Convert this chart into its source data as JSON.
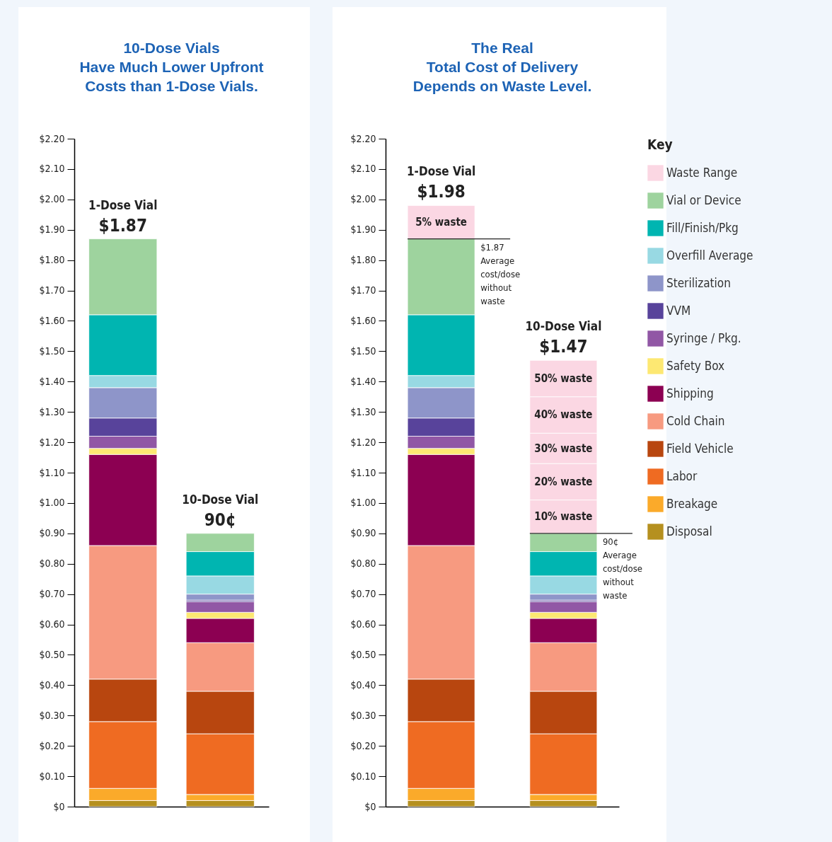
{
  "chart_data": [
    {
      "type": "bar",
      "stacked": true,
      "title": "10-Dose Vials\nHave Much Lower Upfront\nCosts than 1-Dose Vials.",
      "categories": [
        "1-Dose Vial",
        "10-Dose Vial"
      ],
      "totals": [
        "$1.87",
        "90¢"
      ],
      "ylim": [
        0,
        2.2
      ],
      "yticks": [
        {
          "value": 0,
          "label": "$0"
        },
        {
          "value": 0.1,
          "label": "$0.10"
        },
        {
          "value": 0.2,
          "label": "$0.20"
        },
        {
          "value": 0.3,
          "label": "$0.30"
        },
        {
          "value": 0.4,
          "label": "$0.40"
        },
        {
          "value": 0.5,
          "label": "$0.50"
        },
        {
          "value": 0.6,
          "label": "$0.60"
        },
        {
          "value": 0.7,
          "label": "$0.70"
        },
        {
          "value": 0.8,
          "label": "$0.80"
        },
        {
          "value": 0.9,
          "label": "$0.90"
        },
        {
          "value": 1,
          "label": "$1.00"
        },
        {
          "value": 1.1,
          "label": "$1.10"
        },
        {
          "value": 1.2,
          "label": "$1.20"
        },
        {
          "value": 1.3,
          "label": "$1.30"
        },
        {
          "value": 1.4,
          "label": "$1.40"
        },
        {
          "value": 1.5,
          "label": "$1.50"
        },
        {
          "value": 1.6,
          "label": "$1.60"
        },
        {
          "value": 1.7,
          "label": "$1.70"
        },
        {
          "value": 1.8,
          "label": "$1.80"
        },
        {
          "value": 1.9,
          "label": "$1.90"
        },
        {
          "value": 2,
          "label": "$2.00"
        },
        {
          "value": 2.1,
          "label": "$2.10"
        },
        {
          "value": 2.2,
          "label": "$2.20"
        }
      ],
      "grid": false,
      "legend": false,
      "series": [
        {
          "color": "#b5901f",
          "values": [
            0.02,
            0.02
          ]
        },
        {
          "color": "#fbaa2a",
          "values": [
            0.04,
            0.02
          ]
        },
        {
          "color": "#ef6b22",
          "values": [
            0.22,
            0.2
          ]
        },
        {
          "color": "#b8460f",
          "values": [
            0.14,
            0.14
          ]
        },
        {
          "color": "#f79a80",
          "values": [
            0.44,
            0.16
          ]
        },
        {
          "color": "#8c0052",
          "values": [
            0.3,
            0.08
          ]
        },
        {
          "color": "#fde872",
          "values": [
            0.02,
            0.02
          ]
        },
        {
          "color": "#9157a5",
          "values": [
            0.04,
            0.035
          ]
        },
        {
          "color": "#58439b",
          "values": [
            0.06,
            0.005
          ]
        },
        {
          "color": "#8e95c9",
          "values": [
            0.1,
            0.02
          ]
        },
        {
          "color": "#98d9e3",
          "values": [
            0.04,
            0.06
          ]
        },
        {
          "color": "#00b5b1",
          "values": [
            0.2,
            0.08
          ]
        },
        {
          "color": "#9ed39e",
          "values": [
            0.25,
            0.06
          ]
        }
      ]
    },
    {
      "type": "bar",
      "stacked": true,
      "title": "The Real\nTotal Cost of Delivery\nDepends on Waste Level.",
      "categories": [
        "1-Dose Vial",
        "10-Dose Vial"
      ],
      "totals": [
        "$1.98",
        "$1.47"
      ],
      "ylim": [
        0,
        2.2
      ],
      "yticks": [
        {
          "value": 0,
          "label": "$0"
        },
        {
          "value": 0.1,
          "label": "$0.10"
        },
        {
          "value": 0.2,
          "label": "$0.20"
        },
        {
          "value": 0.3,
          "label": "$0.30"
        },
        {
          "value": 0.4,
          "label": "$0.40"
        },
        {
          "value": 0.5,
          "label": "$0.50"
        },
        {
          "value": 0.6,
          "label": "$0.60"
        },
        {
          "value": 0.7,
          "label": "$0.70"
        },
        {
          "value": 0.8,
          "label": "$0.80"
        },
        {
          "value": 0.9,
          "label": "$0.90"
        },
        {
          "value": 1,
          "label": "$1.00"
        },
        {
          "value": 1.1,
          "label": "$1.10"
        },
        {
          "value": 1.2,
          "label": "$1.20"
        },
        {
          "value": 1.3,
          "label": "$1.30"
        },
        {
          "value": 1.4,
          "label": "$1.40"
        },
        {
          "value": 1.5,
          "label": "$1.50"
        },
        {
          "value": 1.6,
          "label": "$1.60"
        },
        {
          "value": 1.7,
          "label": "$1.70"
        },
        {
          "value": 1.8,
          "label": "$1.80"
        },
        {
          "value": 1.9,
          "label": "$1.90"
        },
        {
          "value": 2,
          "label": "$2.00"
        },
        {
          "value": 2.1,
          "label": "$2.10"
        },
        {
          "value": 2.2,
          "label": "$2.20"
        }
      ],
      "grid": false,
      "legend": "right",
      "legend_title": "Key",
      "ref_lines": [
        {
          "axis": "y",
          "value": 1.87,
          "label": "$1.87\nAverage\ncost/dose\nwithout\nwaste"
        },
        {
          "axis": "y",
          "value": 0.9,
          "label": "90¢\nAverage\ncost/dose\nwithout\nwaste"
        }
      ],
      "annotations": [
        "5% waste",
        "10% waste",
        "20% waste",
        "30% waste",
        "40% waste",
        "50% waste"
      ],
      "series": [
        {
          "name": "Disposal",
          "color": "#b5901f",
          "values": [
            0.02,
            0.02
          ]
        },
        {
          "name": "Breakage",
          "color": "#fbaa2a",
          "values": [
            0.04,
            0.02
          ]
        },
        {
          "name": "Labor",
          "color": "#ef6b22",
          "values": [
            0.22,
            0.2
          ]
        },
        {
          "name": "Field Vehicle",
          "color": "#b8460f",
          "values": [
            0.14,
            0.14
          ]
        },
        {
          "name": "Cold Chain",
          "color": "#f79a80",
          "values": [
            0.44,
            0.16
          ]
        },
        {
          "name": "Shipping",
          "color": "#8c0052",
          "values": [
            0.3,
            0.08
          ]
        },
        {
          "name": "Safety Box",
          "color": "#fde872",
          "values": [
            0.02,
            0.02
          ]
        },
        {
          "name": "Syringe / Pkg.",
          "color": "#9157a5",
          "values": [
            0.04,
            0.035
          ]
        },
        {
          "name": "VVM",
          "color": "#58439b",
          "values": [
            0.06,
            0.005
          ]
        },
        {
          "name": "Sterilization",
          "color": "#8e95c9",
          "values": [
            0.1,
            0.02
          ]
        },
        {
          "name": "Overfill Average",
          "color": "#98d9e3",
          "values": [
            0.04,
            0.06
          ]
        },
        {
          "name": "Fill/Finish/Pkg",
          "color": "#00b5b1",
          "values": [
            0.2,
            0.08
          ]
        },
        {
          "name": "Vial or Device",
          "color": "#9ed39e",
          "values": [
            0.25,
            0.06
          ]
        },
        {
          "name": "Waste Range",
          "color": "#fbd7e3",
          "values": [
            0.11,
            0.11
          ]
        },
        {
          "color": "#fbd7e3",
          "values": [
            null,
            0.12
          ]
        },
        {
          "color": "#fbd7e3",
          "values": [
            null,
            0.1
          ]
        },
        {
          "color": "#fbd7e3",
          "values": [
            null,
            0.12
          ]
        },
        {
          "color": "#fbd7e3",
          "values": [
            null,
            0.12
          ]
        }
      ]
    }
  ]
}
